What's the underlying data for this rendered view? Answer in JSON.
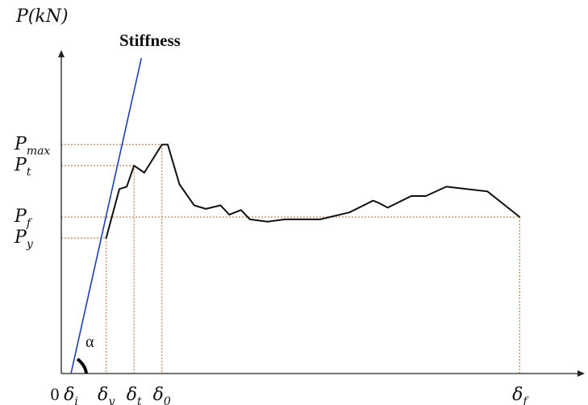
{
  "chart_data": {
    "type": "line",
    "ylabel": "P(kN)",
    "annotations": {
      "stiffness_label": "Stiffness",
      "angle_label": "α"
    },
    "y_ticks": [
      {
        "key": "pmax",
        "base": "P",
        "sub": "max"
      },
      {
        "key": "pt",
        "base": "P",
        "sub": "t"
      },
      {
        "key": "pf",
        "base": "P",
        "sub": "f"
      },
      {
        "key": "py",
        "base": "P",
        "sub": "y"
      }
    ],
    "x_ticks": [
      {
        "key": "origin",
        "base": "0",
        "sub": ""
      },
      {
        "key": "di",
        "base": "δ",
        "sub": "i"
      },
      {
        "key": "dy",
        "base": "δ",
        "sub": "y"
      },
      {
        "key": "dt",
        "base": "δ",
        "sub": "t"
      },
      {
        "key": "d0",
        "base": "δ",
        "sub": "0"
      },
      {
        "key": "df",
        "base": "δ",
        "sub": "f"
      }
    ],
    "x_ticks_values": {
      "di": 0.0,
      "dy": 1.2,
      "dt": 2.15,
      "d0": 3.1,
      "df": 15.3
    },
    "y_ticks_values": {
      "pmax": 9.8,
      "pt": 8.9,
      "pf": 6.7,
      "py": 5.8
    },
    "xlim": [
      -0.35,
      17.5
    ],
    "ylim": [
      -0.35,
      13.5
    ],
    "series": [
      {
        "values": [
          [
            1.2,
            5.8
          ],
          [
            1.65,
            7.9
          ],
          [
            1.9,
            8.0
          ],
          [
            2.15,
            8.9
          ],
          [
            2.5,
            8.6
          ],
          [
            3.1,
            9.8
          ],
          [
            3.3,
            9.8
          ],
          [
            3.7,
            8.1
          ],
          [
            4.2,
            7.2
          ],
          [
            4.6,
            7.05
          ],
          [
            5.1,
            7.2
          ],
          [
            5.4,
            6.8
          ],
          [
            5.8,
            7.0
          ],
          [
            6.1,
            6.6
          ],
          [
            6.7,
            6.5
          ],
          [
            7.3,
            6.6
          ],
          [
            8.5,
            6.6
          ],
          [
            9.5,
            6.9
          ],
          [
            10.3,
            7.4
          ],
          [
            10.5,
            7.3
          ],
          [
            10.8,
            7.1
          ],
          [
            11.6,
            7.6
          ],
          [
            12.1,
            7.6
          ],
          [
            12.8,
            8.0
          ],
          [
            14.2,
            7.8
          ],
          [
            15.3,
            6.7
          ]
        ]
      }
    ],
    "stiffness_line": {
      "start": [
        0.0,
        0.0
      ],
      "end": [
        2.4,
        13.5
      ]
    },
    "grid": false,
    "reference_lines": "dotted",
    "colors": {
      "curve": "#111111",
      "stiffness": "#1f3fb0",
      "guides": "#c4875a",
      "axes": "#222222"
    }
  }
}
